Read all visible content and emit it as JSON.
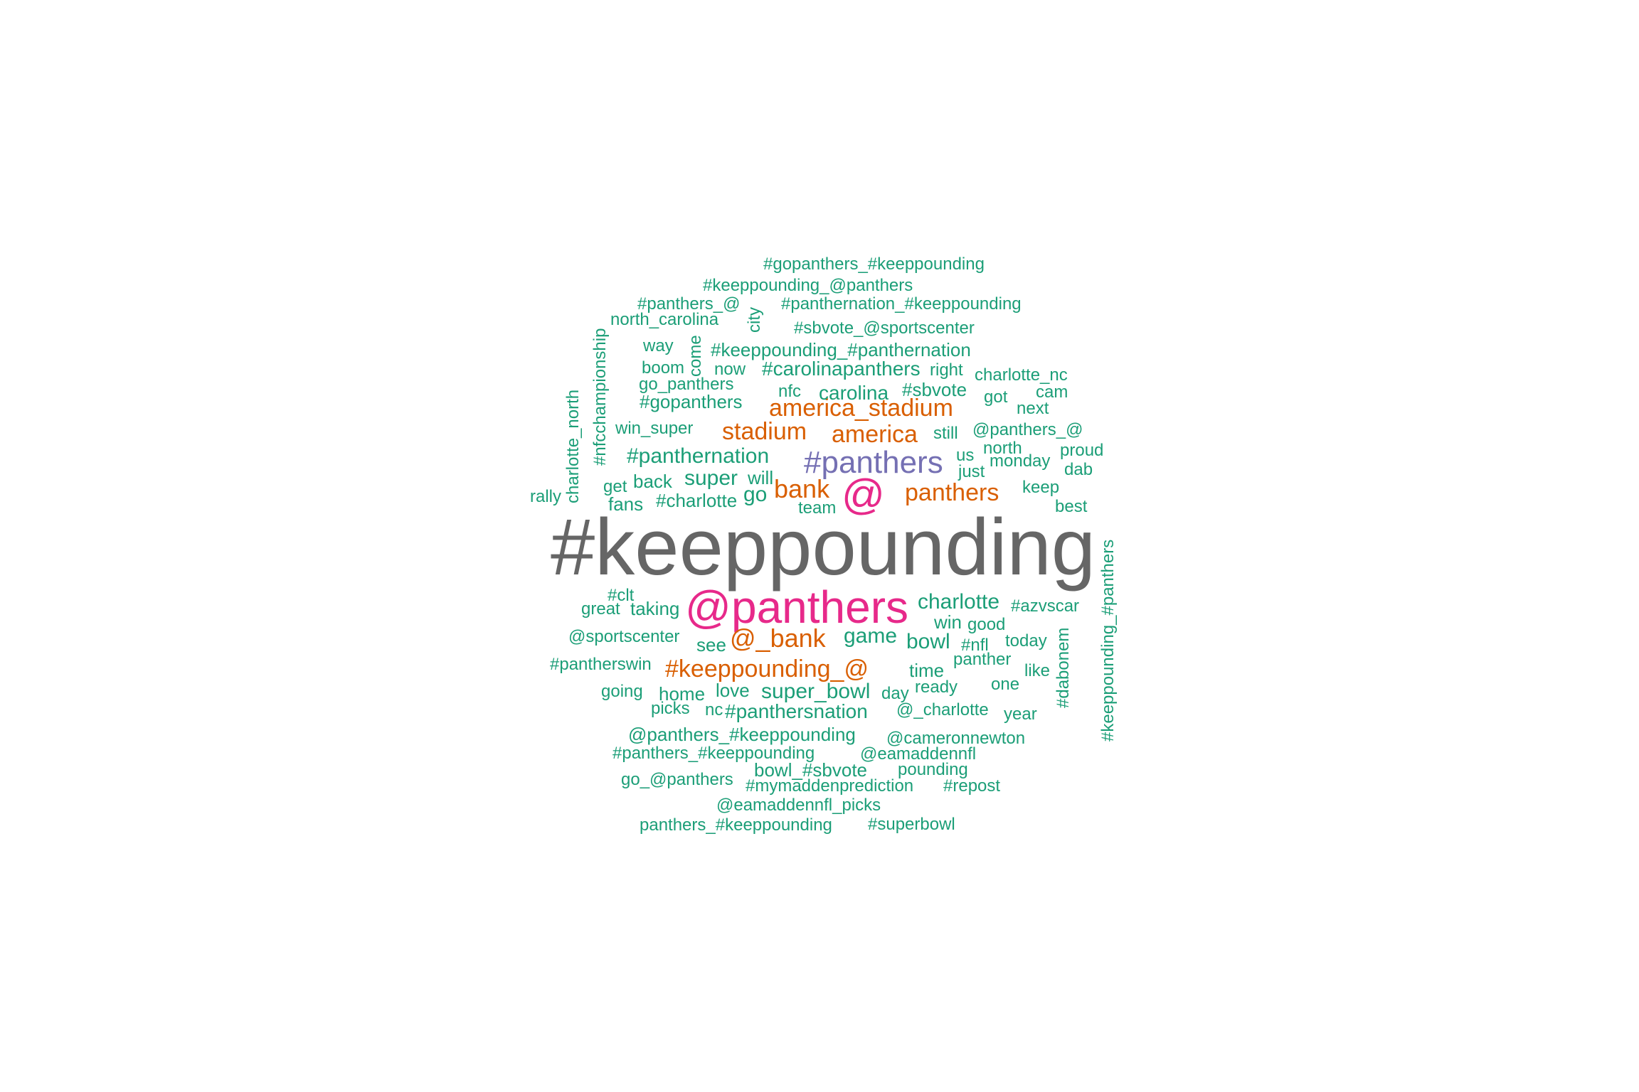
{
  "colors": {
    "green": "#1b9e77",
    "orange": "#d95f02",
    "purple": "#7570b3",
    "pink": "#e7298a",
    "gray": "#666666"
  },
  "words": [
    {
      "text": "#keeppounding",
      "color": "gray"
    },
    {
      "text": "@panthers",
      "color": "pink"
    },
    {
      "text": "@",
      "color": "pink"
    },
    {
      "text": "#panthers",
      "color": "purple"
    },
    {
      "text": "bank",
      "color": "orange"
    },
    {
      "text": "panthers",
      "color": "orange"
    },
    {
      "text": "america_stadium",
      "color": "orange"
    },
    {
      "text": "stadium",
      "color": "orange"
    },
    {
      "text": "america",
      "color": "orange"
    },
    {
      "text": "@_bank",
      "color": "orange"
    },
    {
      "text": "#keeppounding_@",
      "color": "orange"
    },
    {
      "text": "#gopanthers_#keeppounding",
      "color": "green"
    },
    {
      "text": "#keeppounding_@panthers",
      "color": "green"
    },
    {
      "text": "#panthers_@",
      "color": "green"
    },
    {
      "text": "#panthernation_#keeppounding",
      "color": "green"
    },
    {
      "text": "north_carolina",
      "color": "green"
    },
    {
      "text": "city",
      "color": "green"
    },
    {
      "text": "#sbvote_@sportscenter",
      "color": "green"
    },
    {
      "text": "way",
      "color": "green"
    },
    {
      "text": "come",
      "color": "green"
    },
    {
      "text": "#keeppounding_#panthernation",
      "color": "green"
    },
    {
      "text": "#nfcchampionship",
      "color": "green"
    },
    {
      "text": "boom",
      "color": "green"
    },
    {
      "text": "now",
      "color": "green"
    },
    {
      "text": "#carolinapanthers",
      "color": "green"
    },
    {
      "text": "right",
      "color": "green"
    },
    {
      "text": "charlotte_nc",
      "color": "green"
    },
    {
      "text": "go_panthers",
      "color": "green"
    },
    {
      "text": "nfc",
      "color": "green"
    },
    {
      "text": "carolina",
      "color": "green"
    },
    {
      "text": "#sbvote",
      "color": "green"
    },
    {
      "text": "got",
      "color": "green"
    },
    {
      "text": "cam",
      "color": "green"
    },
    {
      "text": "charlotte_north",
      "color": "green"
    },
    {
      "text": "#gopanthers",
      "color": "green"
    },
    {
      "text": "next",
      "color": "green"
    },
    {
      "text": "win_super",
      "color": "green"
    },
    {
      "text": "still",
      "color": "green"
    },
    {
      "text": "@panthers_@",
      "color": "green"
    },
    {
      "text": "#panthernation",
      "color": "green"
    },
    {
      "text": "us",
      "color": "green"
    },
    {
      "text": "north",
      "color": "green"
    },
    {
      "text": "proud",
      "color": "green"
    },
    {
      "text": "monday",
      "color": "green"
    },
    {
      "text": "just",
      "color": "green"
    },
    {
      "text": "dab",
      "color": "green"
    },
    {
      "text": "super",
      "color": "green"
    },
    {
      "text": "will",
      "color": "green"
    },
    {
      "text": "back",
      "color": "green"
    },
    {
      "text": "get",
      "color": "green"
    },
    {
      "text": "keep",
      "color": "green"
    },
    {
      "text": "rally",
      "color": "green"
    },
    {
      "text": "go",
      "color": "green"
    },
    {
      "text": "#charlotte",
      "color": "green"
    },
    {
      "text": "fans",
      "color": "green"
    },
    {
      "text": "team",
      "color": "green"
    },
    {
      "text": "best",
      "color": "green"
    },
    {
      "text": "#keeppounding_#panthers",
      "color": "green"
    },
    {
      "text": "#clt",
      "color": "green"
    },
    {
      "text": "great",
      "color": "green"
    },
    {
      "text": "taking",
      "color": "green"
    },
    {
      "text": "charlotte",
      "color": "green"
    },
    {
      "text": "#azvscar",
      "color": "green"
    },
    {
      "text": "win",
      "color": "green"
    },
    {
      "text": "good",
      "color": "green"
    },
    {
      "text": "@sportscenter",
      "color": "green"
    },
    {
      "text": "see",
      "color": "green"
    },
    {
      "text": "game",
      "color": "green"
    },
    {
      "text": "bowl",
      "color": "green"
    },
    {
      "text": "#nfl",
      "color": "green"
    },
    {
      "text": "today",
      "color": "green"
    },
    {
      "text": "#dabonem",
      "color": "green"
    },
    {
      "text": "#pantherswin",
      "color": "green"
    },
    {
      "text": "panther",
      "color": "green"
    },
    {
      "text": "time",
      "color": "green"
    },
    {
      "text": "like",
      "color": "green"
    },
    {
      "text": "going",
      "color": "green"
    },
    {
      "text": "home",
      "color": "green"
    },
    {
      "text": "love",
      "color": "green"
    },
    {
      "text": "super_bowl",
      "color": "green"
    },
    {
      "text": "day",
      "color": "green"
    },
    {
      "text": "ready",
      "color": "green"
    },
    {
      "text": "one",
      "color": "green"
    },
    {
      "text": "picks",
      "color": "green"
    },
    {
      "text": "nc",
      "color": "green"
    },
    {
      "text": "#panthersnation",
      "color": "green"
    },
    {
      "text": "@_charlotte",
      "color": "green"
    },
    {
      "text": "year",
      "color": "green"
    },
    {
      "text": "@panthers_#keeppounding",
      "color": "green"
    },
    {
      "text": "@cameronnewton",
      "color": "green"
    },
    {
      "text": "#panthers_#keeppounding",
      "color": "green"
    },
    {
      "text": "@eamaddennfl",
      "color": "green"
    },
    {
      "text": "bowl_#sbvote",
      "color": "green"
    },
    {
      "text": "pounding",
      "color": "green"
    },
    {
      "text": "go_@panthers",
      "color": "green"
    },
    {
      "text": "#mymaddenprediction",
      "color": "green"
    },
    {
      "text": "#repost",
      "color": "green"
    },
    {
      "text": "@eamaddennfl_picks",
      "color": "green"
    },
    {
      "text": "panthers_#keeppounding",
      "color": "green"
    },
    {
      "text": "#superbowl",
      "color": "green"
    }
  ]
}
